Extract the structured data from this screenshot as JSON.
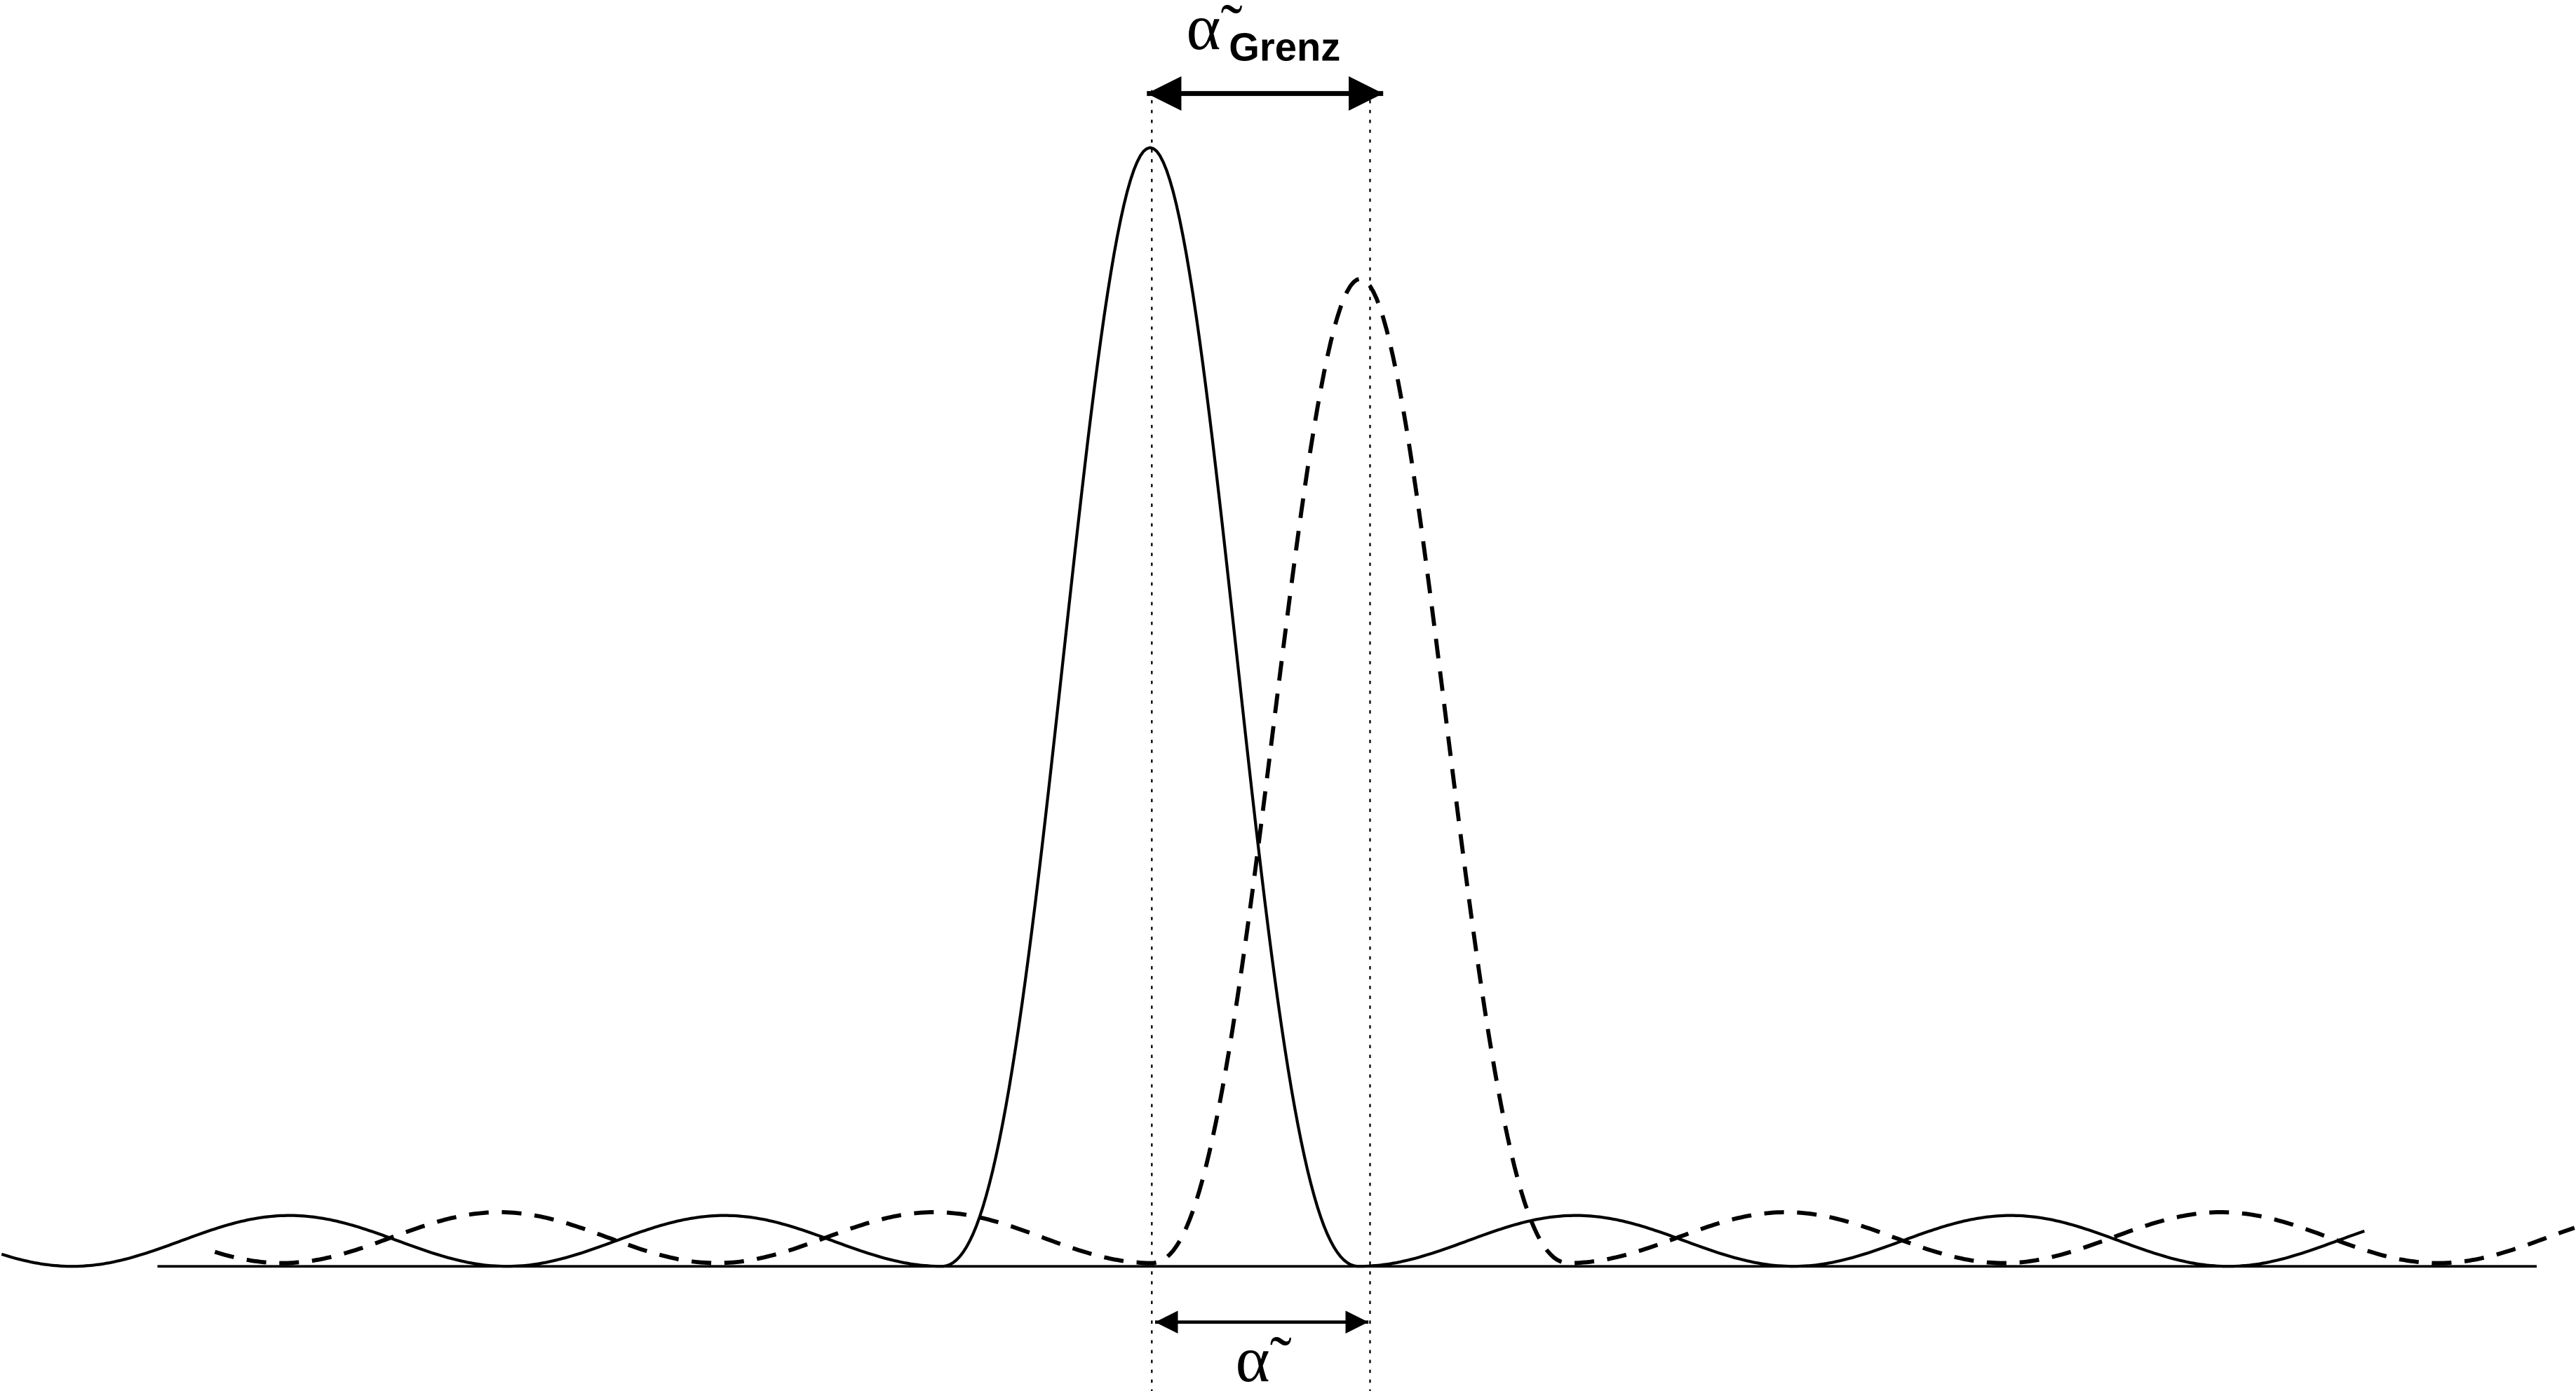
{
  "labels": {
    "top": {
      "symbol": "α̃",
      "subscript": "Grenz"
    },
    "bottom": {
      "symbol": "α̃"
    }
  }
}
